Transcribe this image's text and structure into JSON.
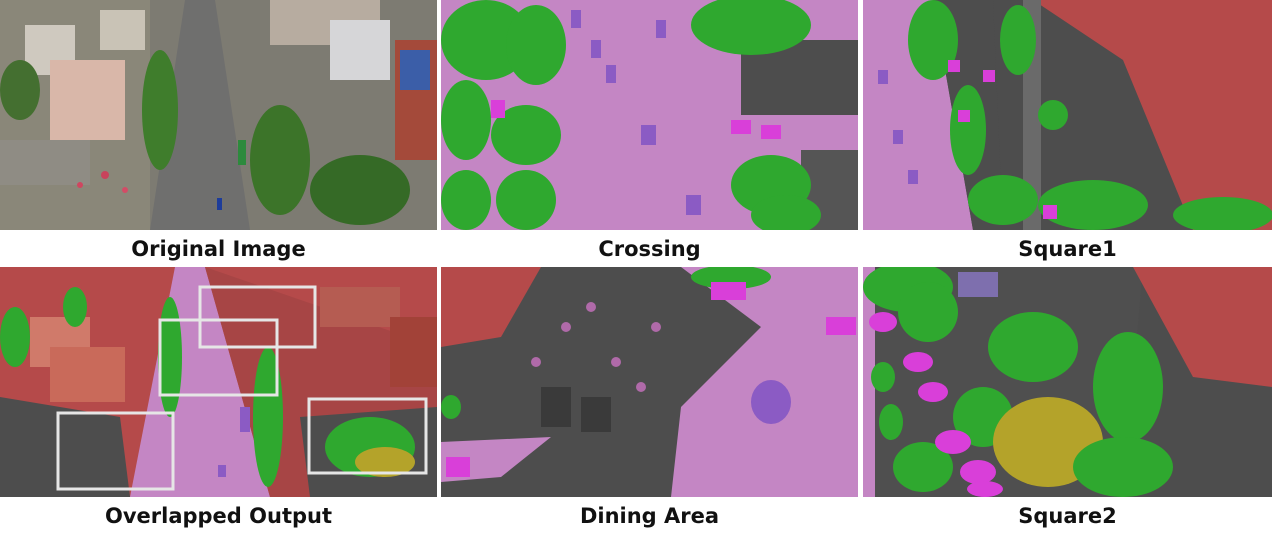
{
  "panels": [
    {
      "caption": "Original Image"
    },
    {
      "caption": "Crossing"
    },
    {
      "caption": "Square1"
    },
    {
      "caption": "Overlapped Output"
    },
    {
      "caption": "Dining Area"
    },
    {
      "caption": "Square2"
    }
  ],
  "colors": {
    "road": "#c486c4",
    "vegetation": "#2fa82f",
    "building": "#b54a4a",
    "vehicle": "#d93fd9",
    "pavement": "#4d4d4d",
    "grass_yellow": "#b4a32a",
    "highlight_box": "#e6e6e6"
  }
}
